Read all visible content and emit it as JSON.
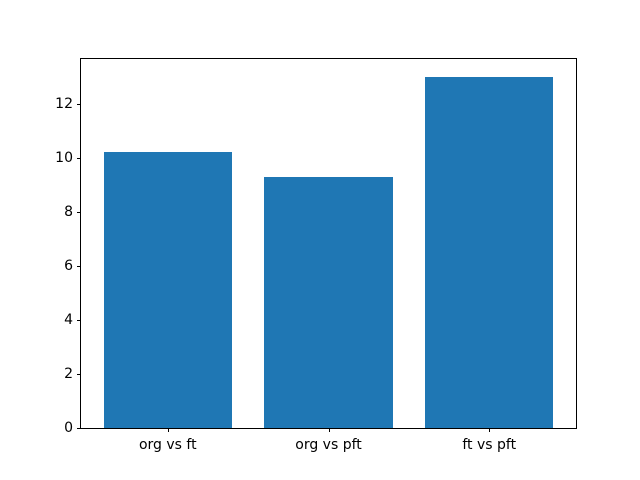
{
  "chart_data": {
    "type": "bar",
    "title": "",
    "xlabel": "",
    "ylabel": "",
    "categories": [
      "org vs ft",
      "org vs pft",
      "ft vs pft"
    ],
    "values": [
      10.2,
      9.3,
      13.0
    ],
    "yticks": [
      0,
      2,
      4,
      6,
      8,
      10,
      12
    ],
    "ylim": [
      0,
      13.65
    ],
    "xlim": [
      -0.54,
      2.54
    ],
    "bar_width_units": 0.8,
    "bar_color": "#1f77b4",
    "grid": false,
    "legend": null
  }
}
